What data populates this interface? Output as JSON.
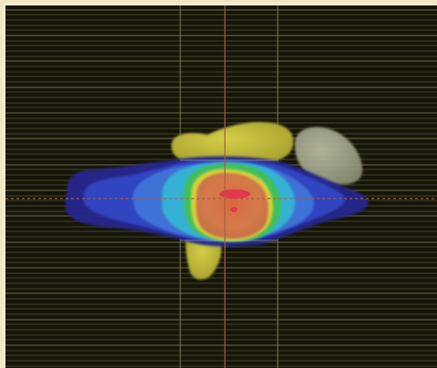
{
  "view": {
    "kind": "radiotherapy dose distribution overlay on CT slice (no visible text)",
    "colors": {
      "background": "#161509",
      "slice_lines": "#7d7a52",
      "crosshair": "#a35f3f",
      "frame": "#f3ecd0",
      "structure_yellow": "#bdb63a",
      "structure_gray": "#a9ab90",
      "isodose_outer": "#2b2a9a",
      "isodose_blue": "#3a52d3",
      "isodose_cyan": "#33b7d3",
      "isodose_green": "#3fbf55",
      "isodose_yellow": "#d6cf3b",
      "isodose_orange": "#e06f2f",
      "isodose_core": "#d86b4a",
      "hotspot": "#e6345a"
    },
    "icons": []
  }
}
